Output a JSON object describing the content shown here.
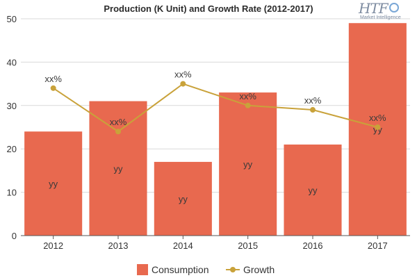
{
  "chart_data": {
    "type": "bar",
    "title": "Production (K Unit) and Growth Rate (2012-2017)",
    "xlabel": "",
    "ylabel": "",
    "categories": [
      "2012",
      "2013",
      "2014",
      "2015",
      "2016",
      "2017"
    ],
    "ylim": [
      0,
      50
    ],
    "yticks": [
      0,
      10,
      20,
      30,
      40,
      50
    ],
    "grid": true,
    "legend_position": "bottom",
    "series": [
      {
        "name": "Consumption",
        "type": "bar",
        "color": "#e8694f",
        "values": [
          24,
          31,
          17,
          33,
          21,
          49
        ],
        "labels": [
          "yy",
          "yy",
          "yy",
          "yy",
          "yy",
          "yy"
        ]
      },
      {
        "name": "Growth",
        "type": "line",
        "color": "#c9a23a",
        "values": [
          34,
          24,
          35,
          30,
          29,
          25
        ],
        "labels": [
          "xx%",
          "xx%",
          "xx%",
          "xx%",
          "xx%",
          "xx%"
        ]
      }
    ]
  },
  "logo": {
    "mark": "HTF",
    "tagline": "Market Intelligence"
  }
}
